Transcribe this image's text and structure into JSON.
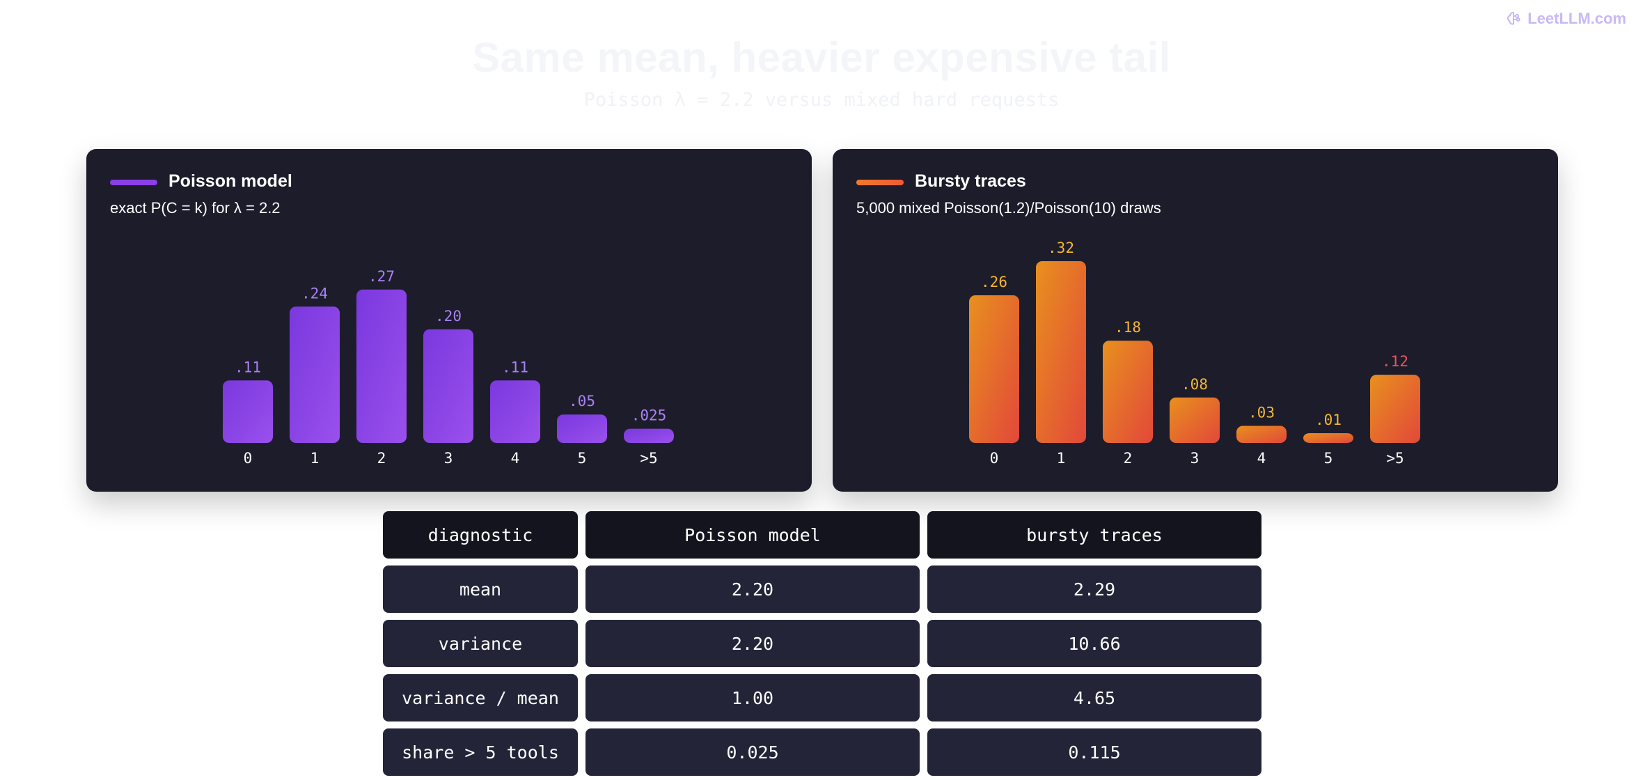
{
  "brand": {
    "name": "LeetLLM.com",
    "icon": "brain-icon",
    "color": "#c9b8f5"
  },
  "page": {
    "title": "Same mean, heavier expensive tail",
    "subtitle": "Poisson λ = 2.2 versus mixed hard requests"
  },
  "panels": [
    {
      "title": "Poisson model",
      "subtitle": "exact P(C = k) for λ = 2.2",
      "swatch_color": "#8b3fe6"
    },
    {
      "title": "Bursty traces",
      "subtitle": "5,000 mixed Poisson(1.2)/Poisson(10) draws",
      "swatch_color": "#f07a2a"
    }
  ],
  "chart_data": [
    {
      "type": "bar",
      "categories": [
        "0",
        "1",
        "2",
        "3",
        "4",
        "5",
        ">5"
      ],
      "values": [
        0.11,
        0.24,
        0.27,
        0.2,
        0.11,
        0.05,
        0.025
      ],
      "data_labels": [
        ".11",
        ".24",
        ".27",
        ".20",
        ".11",
        ".05",
        ".025"
      ],
      "label_colors": [
        "#a882f5",
        "#a882f5",
        "#a882f5",
        "#a882f5",
        "#a882f5",
        "#a882f5",
        "#a882f5"
      ],
      "gradient": [
        "#7a38de",
        "#9a50ec"
      ],
      "ylim": [
        0,
        0.32
      ],
      "grid": false
    },
    {
      "type": "bar",
      "categories": [
        "0",
        "1",
        "2",
        "3",
        "4",
        "5",
        ">5"
      ],
      "values": [
        0.26,
        0.32,
        0.18,
        0.08,
        0.03,
        0.01,
        0.12
      ],
      "data_labels": [
        ".26",
        ".32",
        ".18",
        ".08",
        ".03",
        ".01",
        ".12"
      ],
      "label_colors": [
        "#f5b733",
        "#f5b733",
        "#f5b733",
        "#f5b733",
        "#f5b733",
        "#f5b733",
        "#f0545a"
      ],
      "gradient": [
        "#e8901e",
        "#e2483a"
      ],
      "ylim": [
        0,
        0.32
      ],
      "grid": false
    }
  ],
  "table": {
    "headers": [
      "diagnostic",
      "Poisson model",
      "bursty traces"
    ],
    "rows": [
      [
        "mean",
        "2.20",
        "2.29"
      ],
      [
        "variance",
        "2.20",
        "10.66"
      ],
      [
        "variance / mean",
        "1.00",
        "4.65"
      ],
      [
        "share > 5 tools",
        "0.025",
        "0.115"
      ]
    ]
  }
}
